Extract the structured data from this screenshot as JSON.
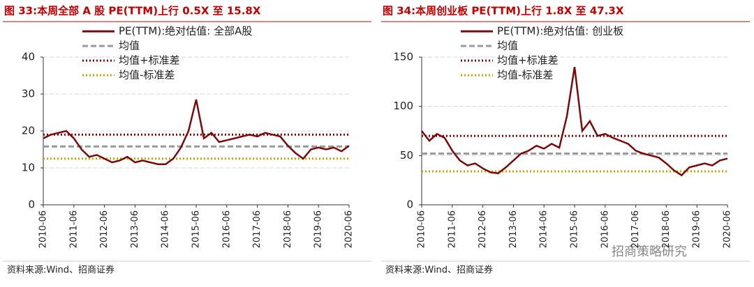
{
  "chart_data": [
    {
      "type": "line",
      "title": "图 33:本周全部 A 股 PE(TTM)上行 0.5X 至 15.8X",
      "x": [
        "2010-06",
        "2010-09",
        "2010-12",
        "2011-03",
        "2011-06",
        "2011-09",
        "2011-12",
        "2012-03",
        "2012-06",
        "2012-09",
        "2012-12",
        "2013-03",
        "2013-06",
        "2013-09",
        "2013-12",
        "2014-03",
        "2014-06",
        "2014-09",
        "2014-12",
        "2015-03",
        "2015-06",
        "2015-09",
        "2015-12",
        "2016-03",
        "2016-06",
        "2016-09",
        "2016-12",
        "2017-03",
        "2017-06",
        "2017-09",
        "2017-12",
        "2018-03",
        "2018-06",
        "2018-09",
        "2018-12",
        "2019-03",
        "2019-06",
        "2019-09",
        "2019-12",
        "2020-03",
        "2020-06"
      ],
      "xlim": [
        "2010-06",
        "2020-06"
      ],
      "xticks": [
        "2010-06",
        "2011-06",
        "2012-06",
        "2013-06",
        "2014-06",
        "2015-06",
        "2016-06",
        "2017-06",
        "2018-06",
        "2019-06",
        "2020-06"
      ],
      "ylim": [
        0,
        40
      ],
      "yticks": [
        0,
        10,
        20,
        30,
        40
      ],
      "grid": true,
      "series": [
        {
          "name": "PE(TTM):绝对估值: 全部A股",
          "color": "#7a0a0a",
          "values": [
            18,
            19,
            19.5,
            20,
            18,
            15,
            13,
            13.5,
            12.5,
            11.5,
            12,
            13,
            11.5,
            12,
            11.5,
            11,
            11,
            12.5,
            15.5,
            20,
            28.5,
            18,
            19.5,
            17,
            17.5,
            18,
            18.5,
            19,
            18.5,
            19.5,
            19,
            18.5,
            16,
            14,
            12.5,
            15,
            15.5,
            15,
            15.5,
            14.5,
            16
          ]
        }
      ],
      "hlines": [
        {
          "name": "均值",
          "color": "#999999",
          "value": 15.8,
          "style": "dash"
        },
        {
          "name": "均值+标准差",
          "color": "#8b0000",
          "value": 19,
          "style": "dot"
        },
        {
          "name": "均值-标准差",
          "color": "#c9a400",
          "value": 12.5,
          "style": "dot"
        }
      ],
      "source": "资料来源:Wind、招商证券"
    },
    {
      "type": "line",
      "title": "图 34:本周创业板 PE(TTM)上行 1.8X 至 47.3X",
      "x": [
        "2010-06",
        "2010-09",
        "2010-12",
        "2011-03",
        "2011-06",
        "2011-09",
        "2011-12",
        "2012-03",
        "2012-06",
        "2012-09",
        "2012-12",
        "2013-03",
        "2013-06",
        "2013-09",
        "2013-12",
        "2014-03",
        "2014-06",
        "2014-09",
        "2014-12",
        "2015-03",
        "2015-06",
        "2015-09",
        "2015-12",
        "2016-03",
        "2016-06",
        "2016-09",
        "2016-12",
        "2017-03",
        "2017-06",
        "2017-09",
        "2017-12",
        "2018-03",
        "2018-06",
        "2018-09",
        "2018-12",
        "2019-03",
        "2019-06",
        "2019-09",
        "2019-12",
        "2020-03",
        "2020-06"
      ],
      "xlim": [
        "2010-06",
        "2020-06"
      ],
      "xticks": [
        "2010-06",
        "2011-06",
        "2012-06",
        "2013-06",
        "2014-06",
        "2015-06",
        "2016-06",
        "2017-06",
        "2018-06",
        "2019-06",
        "2020-06"
      ],
      "ylim": [
        0,
        150
      ],
      "yticks": [
        0,
        50,
        100,
        150
      ],
      "grid": true,
      "series": [
        {
          "name": "PE(TTM):绝对估值: 创业板",
          "color": "#7a0a0a",
          "values": [
            75,
            65,
            72,
            68,
            55,
            45,
            40,
            42,
            37,
            33,
            32,
            38,
            45,
            52,
            55,
            60,
            57,
            62,
            58,
            90,
            140,
            75,
            85,
            70,
            72,
            68,
            65,
            62,
            55,
            52,
            50,
            48,
            42,
            35,
            30,
            38,
            40,
            42,
            40,
            45,
            47
          ]
        }
      ],
      "hlines": [
        {
          "name": "均值",
          "color": "#999999",
          "value": 52,
          "style": "dash"
        },
        {
          "name": "均值+标准差",
          "color": "#8b0000",
          "value": 70,
          "style": "dot"
        },
        {
          "name": "均值-标准差",
          "color": "#c9a400",
          "value": 34,
          "style": "dot"
        }
      ],
      "source": "资料来源:Wind、招商证券"
    }
  ],
  "watermark": "招商策略研究"
}
